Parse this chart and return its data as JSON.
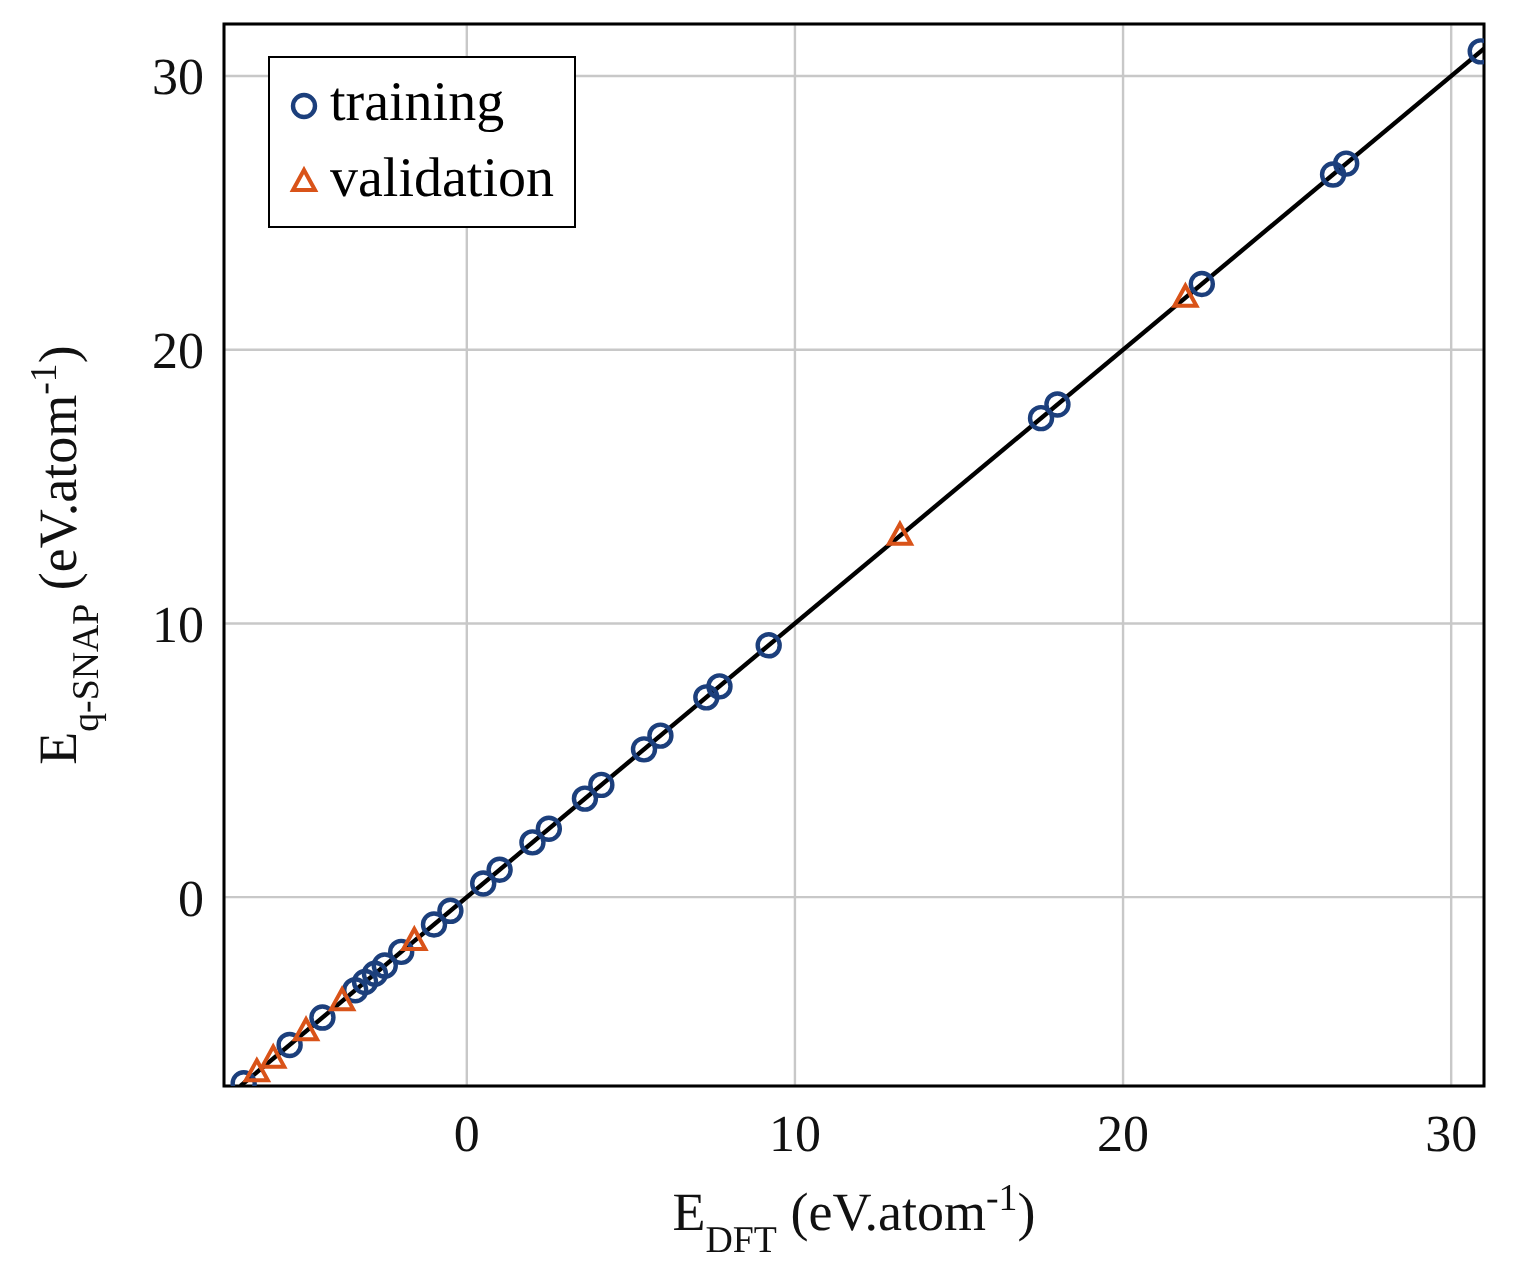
{
  "chart_data": {
    "type": "scatter",
    "xlabel": "E$_{DFT}$ (eV.atom$^{-1}$)",
    "ylabel": "E$_{q-SNAP}$ (eV.atom$^{-1}$)",
    "xlim": [
      -7.4,
      31.0
    ],
    "ylim": [
      -6.9,
      31.9
    ],
    "xticks": [
      0,
      10,
      20,
      30
    ],
    "yticks": [
      0,
      10,
      20,
      30
    ],
    "grid": true,
    "legend": "top left",
    "series": [
      {
        "type": "line",
        "color": "#000000",
        "marker": "none",
        "x": [
          -6.9,
          31.0
        ],
        "values": [
          -6.9,
          31.0
        ]
      },
      {
        "name": "training",
        "color": "#1c3f7c",
        "marker": "circle",
        "x": [
          30.9,
          26.8,
          26.4,
          22.4,
          18.0,
          17.5,
          9.2,
          7.7,
          7.3,
          5.9,
          5.4,
          4.1,
          3.6,
          2.5,
          2.0,
          1.0,
          0.5,
          -0.5,
          -1.0,
          -2.0,
          -2.5,
          -2.8,
          -3.1,
          -3.4,
          -4.4,
          -5.4,
          -6.8
        ],
        "values": [
          30.9,
          26.8,
          26.4,
          22.4,
          18.0,
          17.5,
          9.2,
          7.7,
          7.3,
          5.9,
          5.4,
          4.1,
          3.6,
          2.5,
          2.0,
          1.0,
          0.5,
          -0.5,
          -1.0,
          -2.0,
          -2.5,
          -2.8,
          -3.1,
          -3.4,
          -4.4,
          -5.4,
          -6.8
        ]
      },
      {
        "name": "validation",
        "color": "#d95319",
        "marker": "triangle",
        "x": [
          21.9,
          13.2,
          -1.6,
          -3.8,
          -4.9,
          -5.9,
          -6.4
        ],
        "values": [
          21.9,
          13.2,
          -1.6,
          -3.8,
          -4.9,
          -5.9,
          -6.4
        ]
      }
    ]
  }
}
